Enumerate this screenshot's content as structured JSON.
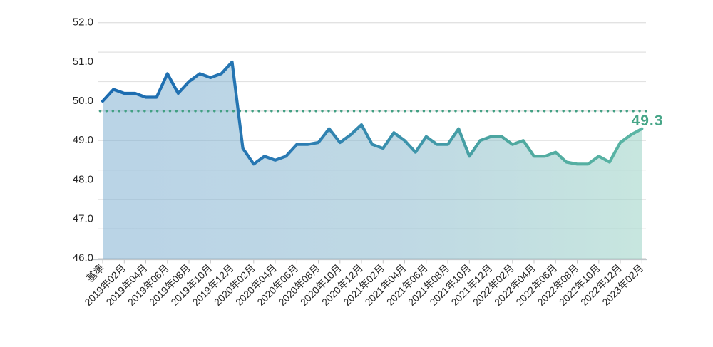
{
  "page": {
    "background": "#ffffff"
  },
  "chart_data": {
    "type": "area",
    "title": "",
    "xlabel": "",
    "ylabel": "",
    "ylim": [
      46.0,
      52.0
    ],
    "y_tick_step": 1.0,
    "gridline_interval": 0.75,
    "grid": "on",
    "legend": "none",
    "y_tick_labels": [
      "52.0",
      "51.0",
      "50.0",
      "49.0",
      "48.0",
      "47.0",
      "46.0"
    ],
    "x_tick_labels": [
      "基準",
      "2019年02月",
      "2019年04月",
      "2019年06月",
      "2019年08月",
      "2019年10月",
      "2019年12月",
      "2020年02月",
      "2020年04月",
      "2020年06月",
      "2020年08月",
      "2020年10月",
      "2020年12月",
      "2021年02月",
      "2021年04月",
      "2021年06月",
      "2021年08月",
      "2021年10月",
      "2021年12月",
      "2022年02月",
      "2022年04月",
      "2022年06月",
      "2022年08月",
      "2022年10月",
      "2022年12月",
      "2023年02月"
    ],
    "x_label_every_n_points": 2,
    "categories": [
      "基準",
      "2019年01月",
      "2019年02月",
      "2019年03月",
      "2019年04月",
      "2019年05月",
      "2019年06月",
      "2019年07月",
      "2019年08月",
      "2019年09月",
      "2019年10月",
      "2019年11月",
      "2019年12月",
      "2020年01月",
      "2020年02月",
      "2020年03月",
      "2020年04月",
      "2020年05月",
      "2020年06月",
      "2020年07月",
      "2020年08月",
      "2020年09月",
      "2020年10月",
      "2020年11月",
      "2020年12月",
      "2021年01月",
      "2021年02月",
      "2021年03月",
      "2021年04月",
      "2021年05月",
      "2021年06月",
      "2021年07月",
      "2021年08月",
      "2021年09月",
      "2021年10月",
      "2021年11月",
      "2021年12月",
      "2022年01月",
      "2022年02月",
      "2022年03月",
      "2022年04月",
      "2022年05月",
      "2022年06月",
      "2022年07月",
      "2022年08月",
      "2022年09月",
      "2022年10月",
      "2022年11月",
      "2022年12月",
      "2023年01月",
      "2023年02月"
    ],
    "series": [
      {
        "name": "指数",
        "values": [
          50.0,
          50.3,
          50.2,
          50.2,
          50.1,
          50.1,
          50.7,
          50.2,
          50.5,
          50.7,
          50.6,
          50.7,
          51.0,
          48.8,
          48.4,
          48.6,
          48.5,
          48.6,
          48.9,
          48.9,
          48.95,
          49.3,
          48.95,
          49.15,
          49.4,
          48.9,
          48.8,
          49.2,
          49.0,
          48.7,
          49.1,
          48.9,
          48.9,
          49.3,
          48.6,
          49.0,
          49.1,
          49.1,
          48.9,
          49.0,
          48.6,
          48.6,
          48.7,
          48.45,
          48.4,
          48.4,
          48.6,
          48.45,
          48.95,
          49.15,
          49.3
        ]
      }
    ],
    "reference_line": {
      "value": 49.75,
      "style": "dotted"
    },
    "annotation": {
      "text": "49.3",
      "value": 49.3,
      "position": "end-of-line"
    }
  },
  "colors": {
    "line_gradient_start": "#1a6ab0",
    "line_gradient_end": "#5bb6a5",
    "area_gradient_start": "#74a8ce",
    "area_gradient_end": "#9ad2c4",
    "gridline": "#e2e2e2",
    "axis_line": "#c0c6ca",
    "axis_tick": "#c4c4c4",
    "tick_text": "#262626",
    "reference_dots": "#42a083",
    "annotation_text": "#47a688"
  }
}
